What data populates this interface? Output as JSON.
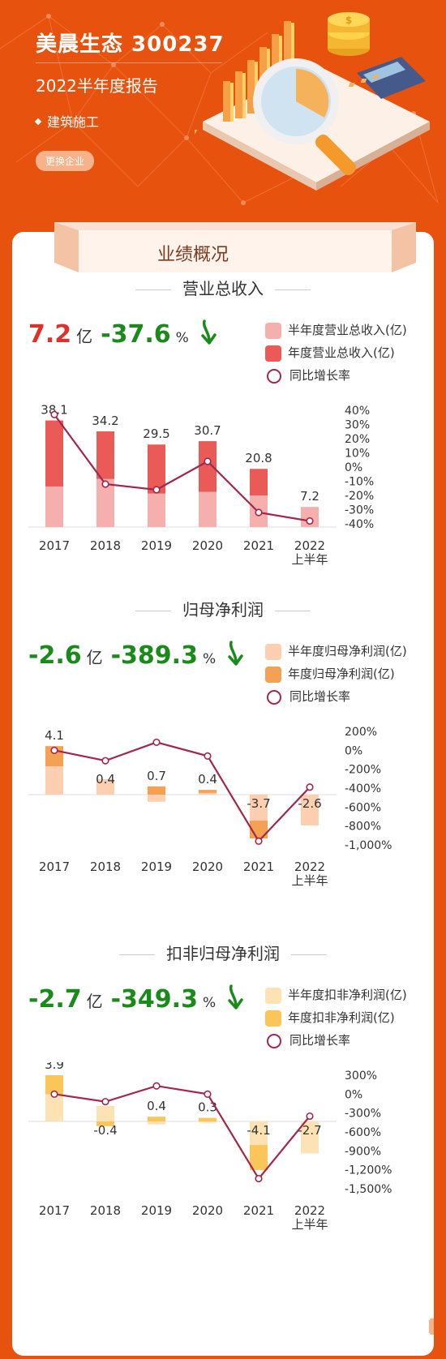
{
  "header": {
    "company": "美晨生态 300237",
    "report": "2022半年度报告",
    "industry": "建筑施工",
    "switch_label": "更换企业"
  },
  "banner": {
    "title": "业绩概况"
  },
  "colors": {
    "background": "#e8520f",
    "revenue_half": "#f5b0ad",
    "revenue_year": "#ea5b58",
    "profit_half": "#fbcfb0",
    "profit_year": "#f5a154",
    "deducted_half": "#fde2b4",
    "deducted_year": "#fbc55a",
    "growth_line": "#a3264b",
    "positive": "#e0302a",
    "negative": "#1a8a1a"
  },
  "sections": [
    {
      "title": "营业总收入",
      "kpi": {
        "value": "7.2",
        "unit": "亿",
        "pct": "-37.6",
        "pct_unit": "%"
      },
      "legend": {
        "half": "半年度营业总收入(亿)",
        "year": "年度营业总收入(亿)",
        "growth": "同比增长率"
      }
    },
    {
      "title": "归母净利润",
      "kpi": {
        "value": "-2.6",
        "unit": "亿",
        "pct": "-389.3",
        "pct_unit": "%"
      },
      "legend": {
        "half": "半年度归母净利润(亿)",
        "year": "年度归母净利润(亿)",
        "growth": "同比增长率"
      }
    },
    {
      "title": "扣非归母净利润",
      "kpi": {
        "value": "-2.7",
        "unit": "亿",
        "pct": "-349.3",
        "pct_unit": "%"
      },
      "legend": {
        "half": "半年度扣非净利润(亿)",
        "year": "年度扣非净利润(亿)",
        "growth": "同比增长率"
      }
    }
  ],
  "chart_data": [
    {
      "type": "bar",
      "categories": [
        "2017",
        "2018",
        "2019",
        "2020",
        "2021",
        "2022\n上半年"
      ],
      "series": [
        {
          "name": "半年度营业总收入(亿)",
          "values": [
            14.5,
            17.2,
            12.0,
            12.6,
            11.3,
            7.2
          ]
        },
        {
          "name": "年度营业总收入(亿)",
          "values": [
            38.1,
            34.2,
            29.5,
            30.7,
            20.8,
            null
          ]
        },
        {
          "name": "同比增长率",
          "values": [
            37,
            -12,
            -16,
            4,
            -32,
            -38
          ]
        }
      ],
      "data_labels": [
        "38.1",
        "34.2",
        "29.5",
        "30.7",
        "20.8",
        "7.2"
      ],
      "y2_ticks": [
        "40%",
        "30%",
        "20%",
        "10%",
        "0%",
        "-10%",
        "-20%",
        "-30%",
        "-40%"
      ],
      "y2lim": [
        -40,
        40
      ]
    },
    {
      "type": "bar",
      "categories": [
        "2017",
        "2018",
        "2019",
        "2020",
        "2021",
        "2022\n上半年"
      ],
      "series": [
        {
          "name": "半年度归母净利润(亿)",
          "values": [
            2.4,
            1.3,
            -0.6,
            0.15,
            -2.2,
            -2.6
          ]
        },
        {
          "name": "年度归母净利润(亿)",
          "values": [
            4.1,
            0.4,
            0.7,
            0.4,
            -3.7,
            null
          ]
        },
        {
          "name": "同比增长率",
          "values": [
            0,
            -110,
            85,
            -60,
            -960,
            -389
          ]
        }
      ],
      "data_labels": [
        "4.1",
        "0.4",
        "0.7",
        "0.4",
        "-3.7",
        "-2.6"
      ],
      "y2_ticks": [
        "200%",
        "0%",
        "-200%",
        "-400%",
        "-600%",
        "-800%",
        "-1,000%"
      ],
      "y2lim": [
        -1000,
        200
      ]
    },
    {
      "type": "bar",
      "categories": [
        "2017",
        "2018",
        "2019",
        "2020",
        "2021",
        "2022\n上半年"
      ],
      "series": [
        {
          "name": "半年度扣非净利润(亿)",
          "values": [
            2.3,
            1.3,
            -0.25,
            -0.1,
            -2.0,
            -2.7
          ]
        },
        {
          "name": "年度扣非净利润(亿)",
          "values": [
            3.9,
            -0.4,
            0.4,
            0.3,
            -4.1,
            null
          ]
        },
        {
          "name": "同比增长率",
          "values": [
            0,
            -120,
            130,
            0,
            -1340,
            -350
          ]
        }
      ],
      "data_labels": [
        "3.9",
        "-0.4",
        "0.4",
        "0.3",
        "-4.1",
        "-2.7"
      ],
      "y2_ticks": [
        "300%",
        "0%",
        "-300%",
        "-600%",
        "-900%",
        "-1,200%",
        "-1,500%"
      ],
      "y2lim": [
        -1500,
        300
      ]
    }
  ]
}
